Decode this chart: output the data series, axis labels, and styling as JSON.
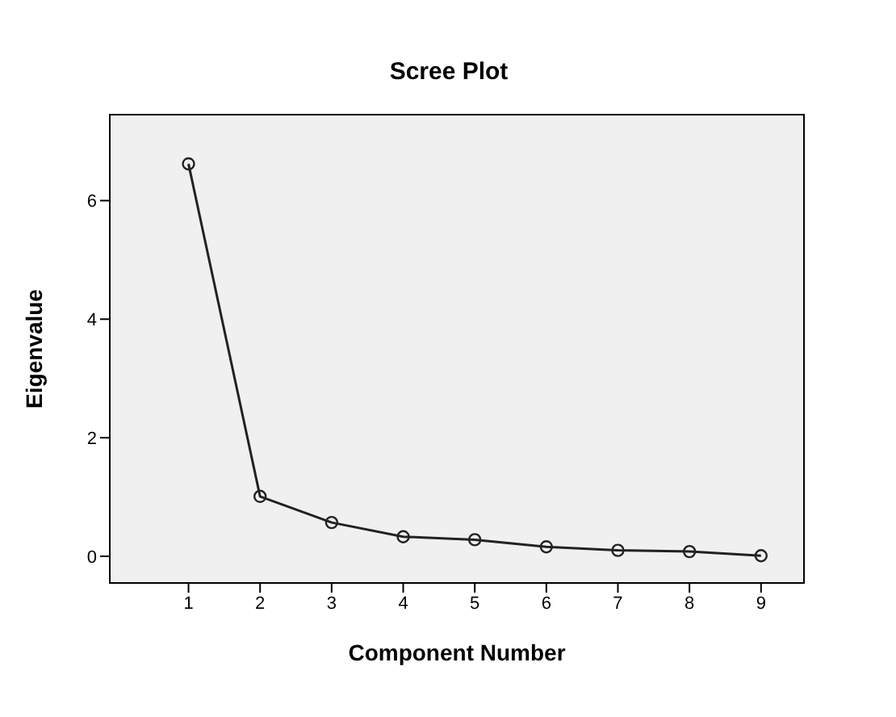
{
  "chart_data": {
    "type": "line",
    "title": "Scree Plot",
    "xlabel": "Component Number",
    "ylabel": "Eigenvalue",
    "x": [
      1,
      2,
      3,
      4,
      5,
      6,
      7,
      8,
      9
    ],
    "series": [
      {
        "color": "#222222",
        "values": [
          6.62,
          1.01,
          0.57,
          0.33,
          0.28,
          0.16,
          0.1,
          0.08,
          0.01
        ]
      }
    ],
    "xlim": [
      -0.1,
      9.6
    ],
    "xticks": [
      1,
      2,
      3,
      4,
      5,
      6,
      7,
      8,
      9
    ],
    "ylim": [
      -0.45,
      7.45
    ],
    "yticks": [
      0,
      2,
      4,
      6
    ],
    "legend": false,
    "marker": "circle",
    "line_style": "solid"
  }
}
